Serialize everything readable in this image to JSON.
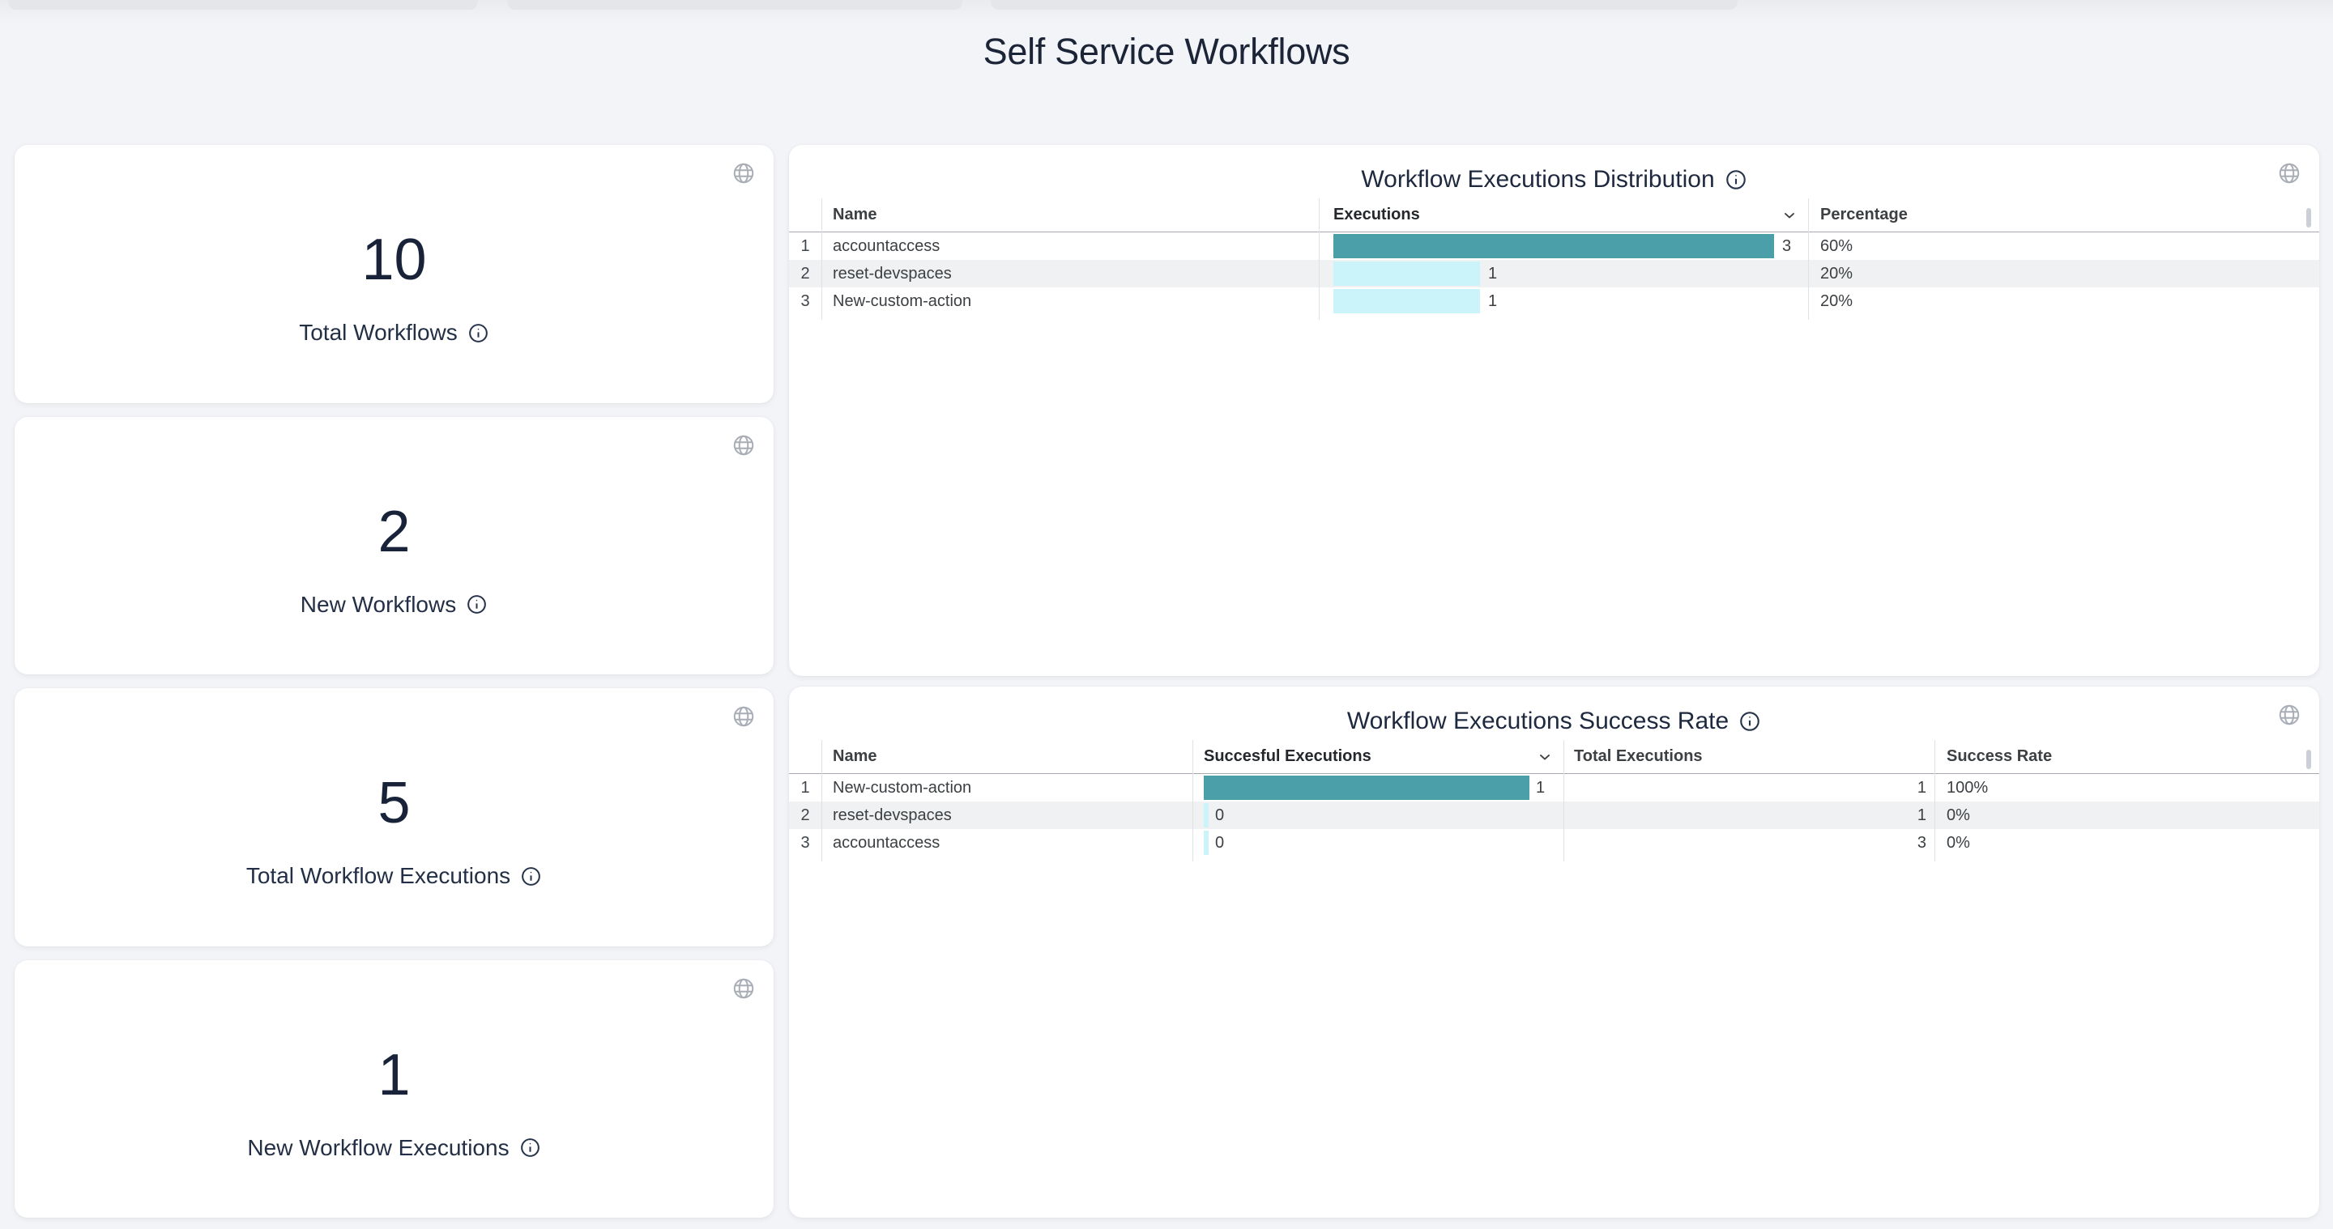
{
  "page": {
    "title": "Self Service Workflows"
  },
  "colors": {
    "accent_teal": "#4A9FA8",
    "accent_cyan": "#CBF4FA",
    "zebra_row": "#F0F1F2",
    "card_bg": "#FFFFFF",
    "page_bg": "#F3F4F7",
    "title_text": "#1B2537"
  },
  "icons": {
    "globe": "globe-icon",
    "info": "info-icon",
    "sort": "chevron-down-icon"
  },
  "stats": [
    {
      "value": "10",
      "label": "Total Workflows"
    },
    {
      "value": "2",
      "label": "New Workflows"
    },
    {
      "value": "5",
      "label": "Total Workflow Executions"
    },
    {
      "value": "1",
      "label": "New Workflow Executions"
    }
  ],
  "tables": [
    {
      "title": "Workflow Executions Distribution",
      "columns": [
        "Name",
        "Executions",
        "Percentage"
      ],
      "sorted_column": "Executions",
      "max_value": 3,
      "rows": [
        {
          "num": "1",
          "name": "accountaccess",
          "value": 3,
          "value_label": "3",
          "percentage": "60%"
        },
        {
          "num": "2",
          "name": "reset-devspaces",
          "value": 1,
          "value_label": "1",
          "percentage": "20%"
        },
        {
          "num": "3",
          "name": "New-custom-action",
          "value": 1,
          "value_label": "1",
          "percentage": "20%"
        }
      ]
    },
    {
      "title": "Workflow Executions Success Rate",
      "columns": [
        "Name",
        "Succesful Executions",
        "Total Executions",
        "Success Rate"
      ],
      "sorted_column": "Succesful Executions",
      "max_value": 1,
      "rows": [
        {
          "num": "1",
          "name": "New-custom-action",
          "value": 1,
          "value_label": "1",
          "total": "1",
          "rate": "100%"
        },
        {
          "num": "2",
          "name": "reset-devspaces",
          "value": 0,
          "value_label": "0",
          "total": "1",
          "rate": "0%"
        },
        {
          "num": "3",
          "name": "accountaccess",
          "value": 0,
          "value_label": "0",
          "total": "3",
          "rate": "0%"
        }
      ]
    }
  ]
}
